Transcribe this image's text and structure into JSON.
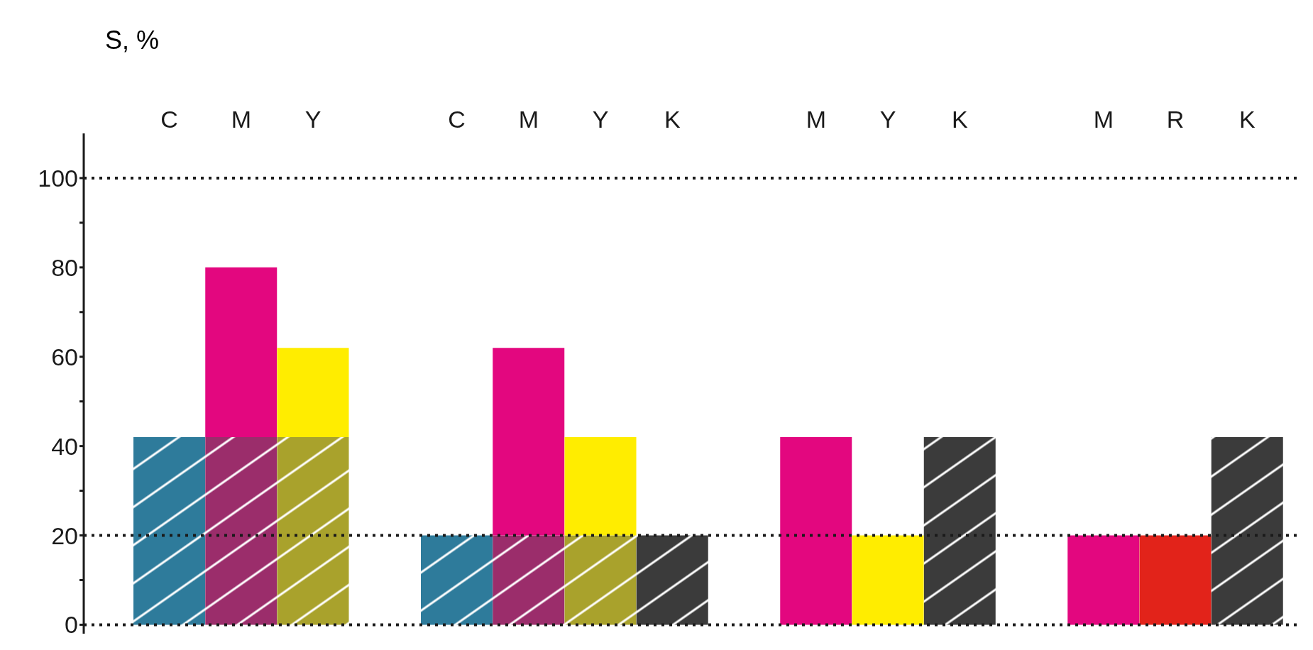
{
  "chart_data": {
    "type": "bar",
    "stacked": true,
    "ylabel": "S, %",
    "categories": [
      "C",
      "M",
      "Y",
      null,
      "C",
      "M",
      "Y",
      "K",
      null,
      "M",
      "Y",
      "K",
      null,
      "M",
      "R",
      "K"
    ],
    "series": [
      {
        "colors": [
          "#2e7b9b",
          "#9b2d6b",
          "#a9a22c",
          null,
          "#2e7b9b",
          "#9b2d6b",
          "#a9a22c",
          "#3b3b3b",
          null,
          null,
          null,
          "#3b3b3b",
          null,
          null,
          null,
          "#3b3b3b"
        ],
        "values": [
          42,
          42,
          42,
          null,
          20,
          20,
          20,
          20,
          null,
          null,
          null,
          42,
          null,
          null,
          null,
          42
        ]
      },
      {
        "colors": [
          null,
          "#e3077f",
          "#ffed00",
          null,
          null,
          "#e3077f",
          "#ffed00",
          null,
          null,
          "#e3077f",
          "#ffed00",
          null,
          null,
          "#e3077f",
          "#e2231a",
          null
        ],
        "values": [
          null,
          38,
          20,
          null,
          null,
          42,
          22,
          null,
          null,
          42,
          20,
          null,
          null,
          20,
          20,
          null
        ]
      }
    ],
    "ylim": [
      -2,
      110
    ],
    "yticks": [
      0,
      {
        "value": 10,
        "label": null
      },
      20,
      {
        "value": 30,
        "label": null
      },
      40,
      {
        "value": 50,
        "label": null
      },
      60,
      {
        "value": 70,
        "label": null
      },
      80,
      {
        "value": 90,
        "label": null
      },
      100
    ],
    "ref_lines": [
      {
        "axis": "y",
        "value": 0,
        "color": "#1a1a1a",
        "line_style": "dotted"
      },
      {
        "axis": "y",
        "value": 20,
        "color": "#1a1a1a",
        "line_style": "dotted"
      },
      {
        "axis": "y",
        "value": 100,
        "color": "#1a1a1a",
        "line_style": "dotted"
      }
    ],
    "grid": false,
    "legend": false
  }
}
